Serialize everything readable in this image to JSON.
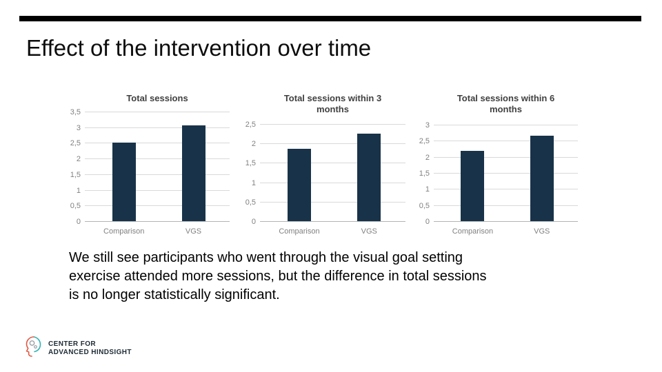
{
  "slide": {
    "title": "Effect of the intervention over time",
    "body_lines": [
      "We still see participants who went through the visual goal setting",
      "exercise attended more sessions, but the difference in total sessions",
      "is no longer statistically significant."
    ],
    "logo": {
      "line1": "CENTER FOR",
      "line2": "ADVANCED HINDSIGHT"
    }
  },
  "colors": {
    "bar": "#183349",
    "top_accent": "#000000",
    "gridline": "#d9d9d9",
    "axis_zero_line": "#b3b3b3",
    "axis_text": "#808080",
    "chart_title_text": "#404040",
    "logo_teal": "#2fb3b4",
    "logo_orange": "#e05a44",
    "logo_text": "#1d2b35"
  },
  "chart_data": [
    {
      "type": "bar",
      "title": "Total sessions",
      "categories": [
        "Comparison",
        "VGS"
      ],
      "values": [
        2.5,
        3.05
      ],
      "ylim": [
        0,
        3.5
      ],
      "ytick_step": 0.5,
      "ytick_labels": [
        "0",
        "0,5",
        "1",
        "1,5",
        "2",
        "2,5",
        "3",
        "3,5"
      ],
      "grid": true,
      "legend": "none",
      "decimal_separator": ","
    },
    {
      "type": "bar",
      "title": "Total sessions within 3 months",
      "categories": [
        "Comparison",
        "VGS"
      ],
      "values": [
        1.87,
        2.26
      ],
      "ylim": [
        0,
        2.5
      ],
      "ytick_step": 0.5,
      "ytick_labels": [
        "0",
        "0,5",
        "1",
        "1,5",
        "2",
        "2,5"
      ],
      "grid": true,
      "legend": "none",
      "decimal_separator": ","
    },
    {
      "type": "bar",
      "title": "Total sessions within 6 months",
      "categories": [
        "Comparison",
        "VGS"
      ],
      "values": [
        2.19,
        2.65
      ],
      "ylim": [
        0,
        3
      ],
      "ytick_step": 0.5,
      "ytick_labels": [
        "0",
        "0,5",
        "1",
        "1,5",
        "2",
        "2,5",
        "3"
      ],
      "grid": true,
      "legend": "none",
      "decimal_separator": ","
    }
  ]
}
